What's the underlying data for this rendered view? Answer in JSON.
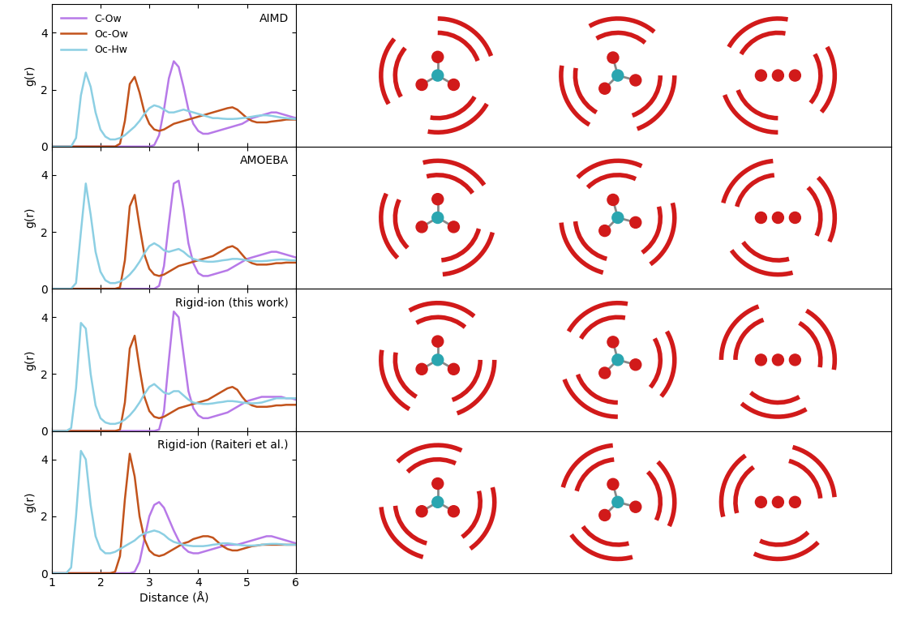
{
  "chart_data": [
    {
      "type": "line",
      "annotation": "AIMD",
      "y_label": "g(r)",
      "legend": "upper left",
      "tick_labels": "y",
      "xlim": [
        1,
        6
      ],
      "ylim": [
        0,
        5
      ],
      "xticks": [
        1,
        2,
        3,
        4,
        5,
        6
      ],
      "yticks": [
        0,
        2,
        4
      ],
      "x": [
        1.0,
        1.1,
        1.2,
        1.3,
        1.4,
        1.5,
        1.6,
        1.7,
        1.8,
        1.9,
        2.0,
        2.1,
        2.2,
        2.3,
        2.4,
        2.5,
        2.6,
        2.7,
        2.8,
        2.9,
        3.0,
        3.1,
        3.2,
        3.3,
        3.4,
        3.5,
        3.6,
        3.7,
        3.8,
        3.9,
        4.0,
        4.1,
        4.2,
        4.3,
        4.4,
        4.5,
        4.6,
        4.7,
        4.8,
        4.9,
        5.0,
        5.1,
        5.2,
        5.3,
        5.4,
        5.5,
        5.6,
        5.7,
        5.8,
        5.9,
        6.0
      ],
      "series": [
        {
          "name": "C-Ow",
          "color": "#b779e8",
          "values": [
            0,
            0,
            0,
            0,
            0,
            0,
            0,
            0,
            0,
            0,
            0,
            0,
            0,
            0,
            0,
            0,
            0,
            0,
            0,
            0,
            0,
            0.05,
            0.4,
            1.3,
            2.4,
            3.0,
            2.8,
            2.1,
            1.3,
            0.8,
            0.55,
            0.45,
            0.45,
            0.5,
            0.55,
            0.6,
            0.65,
            0.7,
            0.75,
            0.8,
            0.9,
            1.0,
            1.05,
            1.1,
            1.15,
            1.2,
            1.2,
            1.15,
            1.1,
            1.05,
            1.0
          ]
        },
        {
          "name": "Oc-Ow",
          "color": "#c2531c",
          "values": [
            0,
            0,
            0,
            0,
            0,
            0,
            0,
            0,
            0,
            0,
            0,
            0,
            0,
            0,
            0.1,
            0.9,
            2.2,
            2.45,
            1.9,
            1.2,
            0.8,
            0.6,
            0.55,
            0.6,
            0.7,
            0.8,
            0.85,
            0.9,
            0.95,
            1.0,
            1.05,
            1.1,
            1.15,
            1.2,
            1.25,
            1.3,
            1.35,
            1.38,
            1.3,
            1.15,
            1.0,
            0.9,
            0.85,
            0.85,
            0.85,
            0.88,
            0.9,
            0.92,
            0.95,
            0.95,
            0.95
          ]
        },
        {
          "name": "Oc-Hw",
          "color": "#8ccfe3",
          "values": [
            0,
            0,
            0,
            0,
            0,
            0.3,
            1.8,
            2.6,
            2.1,
            1.2,
            0.6,
            0.35,
            0.25,
            0.25,
            0.3,
            0.4,
            0.55,
            0.7,
            0.9,
            1.15,
            1.35,
            1.45,
            1.4,
            1.3,
            1.2,
            1.2,
            1.25,
            1.3,
            1.25,
            1.2,
            1.15,
            1.1,
            1.05,
            1.0,
            1.0,
            0.98,
            0.97,
            0.97,
            0.98,
            1.0,
            1.02,
            1.05,
            1.08,
            1.1,
            1.1,
            1.08,
            1.05,
            1.02,
            1.0,
            0.98,
            0.97
          ]
        }
      ]
    },
    {
      "type": "line",
      "annotation": "AMOEBA",
      "y_label": "g(r)",
      "tick_labels": "y",
      "xlim": [
        1,
        6
      ],
      "ylim": [
        0,
        5
      ],
      "xticks": [
        1,
        2,
        3,
        4,
        5,
        6
      ],
      "yticks": [
        0,
        2,
        4
      ],
      "x": [
        1.0,
        1.1,
        1.2,
        1.3,
        1.4,
        1.5,
        1.6,
        1.7,
        1.8,
        1.9,
        2.0,
        2.1,
        2.2,
        2.3,
        2.4,
        2.5,
        2.6,
        2.7,
        2.8,
        2.9,
        3.0,
        3.1,
        3.2,
        3.3,
        3.4,
        3.5,
        3.6,
        3.7,
        3.8,
        3.9,
        4.0,
        4.1,
        4.2,
        4.3,
        4.4,
        4.5,
        4.6,
        4.7,
        4.8,
        4.9,
        5.0,
        5.1,
        5.2,
        5.3,
        5.4,
        5.5,
        5.6,
        5.7,
        5.8,
        5.9,
        6.0
      ],
      "series": [
        {
          "color": "#b779e8",
          "values": [
            0,
            0,
            0,
            0,
            0,
            0,
            0,
            0,
            0,
            0,
            0,
            0,
            0,
            0,
            0,
            0,
            0,
            0,
            0,
            0,
            0,
            0,
            0.1,
            0.8,
            2.3,
            3.7,
            3.8,
            2.8,
            1.6,
            0.9,
            0.55,
            0.45,
            0.45,
            0.5,
            0.55,
            0.6,
            0.65,
            0.75,
            0.85,
            0.95,
            1.05,
            1.1,
            1.15,
            1.2,
            1.25,
            1.3,
            1.3,
            1.25,
            1.2,
            1.15,
            1.1
          ]
        },
        {
          "color": "#c2531c",
          "values": [
            0,
            0,
            0,
            0,
            0,
            0,
            0,
            0,
            0,
            0,
            0,
            0,
            0,
            0,
            0.05,
            1.0,
            2.9,
            3.3,
            2.2,
            1.2,
            0.7,
            0.5,
            0.45,
            0.5,
            0.6,
            0.7,
            0.8,
            0.85,
            0.9,
            0.95,
            1.0,
            1.05,
            1.1,
            1.15,
            1.25,
            1.35,
            1.45,
            1.5,
            1.4,
            1.2,
            1.0,
            0.9,
            0.85,
            0.85,
            0.85,
            0.87,
            0.9,
            0.9,
            0.92,
            0.92,
            0.92
          ]
        },
        {
          "color": "#8ccfe3",
          "values": [
            0,
            0,
            0,
            0,
            0,
            0.2,
            2.0,
            3.7,
            2.6,
            1.3,
            0.6,
            0.3,
            0.2,
            0.2,
            0.25,
            0.35,
            0.5,
            0.7,
            0.95,
            1.25,
            1.5,
            1.6,
            1.5,
            1.35,
            1.3,
            1.35,
            1.4,
            1.3,
            1.15,
            1.05,
            1.0,
            0.97,
            0.95,
            0.95,
            0.97,
            1.0,
            1.02,
            1.05,
            1.05,
            1.03,
            1.0,
            0.98,
            0.97,
            0.97,
            0.98,
            1.0,
            1.02,
            1.03,
            1.02,
            1.0,
            1.0
          ]
        }
      ]
    },
    {
      "type": "line",
      "annotation": "Rigid-ion (this work)",
      "y_label": "g(r)",
      "tick_labels": "y",
      "xlim": [
        1,
        6
      ],
      "ylim": [
        0,
        5
      ],
      "xticks": [
        1,
        2,
        3,
        4,
        5,
        6
      ],
      "yticks": [
        0,
        2,
        4
      ],
      "x": [
        1.0,
        1.1,
        1.2,
        1.3,
        1.4,
        1.5,
        1.6,
        1.7,
        1.8,
        1.9,
        2.0,
        2.1,
        2.2,
        2.3,
        2.4,
        2.5,
        2.6,
        2.7,
        2.8,
        2.9,
        3.0,
        3.1,
        3.2,
        3.3,
        3.4,
        3.5,
        3.6,
        3.7,
        3.8,
        3.9,
        4.0,
        4.1,
        4.2,
        4.3,
        4.4,
        4.5,
        4.6,
        4.7,
        4.8,
        4.9,
        5.0,
        5.1,
        5.2,
        5.3,
        5.4,
        5.5,
        5.6,
        5.7,
        5.8,
        5.9,
        6.0
      ],
      "series": [
        {
          "color": "#b779e8",
          "values": [
            0,
            0,
            0,
            0,
            0,
            0,
            0,
            0,
            0,
            0,
            0,
            0,
            0,
            0,
            0,
            0,
            0,
            0,
            0,
            0,
            0,
            0,
            0.05,
            0.7,
            2.5,
            4.2,
            4.0,
            2.7,
            1.4,
            0.8,
            0.55,
            0.45,
            0.45,
            0.5,
            0.55,
            0.6,
            0.65,
            0.75,
            0.85,
            0.95,
            1.05,
            1.1,
            1.15,
            1.2,
            1.2,
            1.2,
            1.2,
            1.2,
            1.15,
            1.15,
            1.1
          ]
        },
        {
          "color": "#c2531c",
          "values": [
            0,
            0,
            0,
            0,
            0,
            0,
            0,
            0,
            0,
            0,
            0,
            0,
            0,
            0,
            0.05,
            1.0,
            2.9,
            3.35,
            2.2,
            1.2,
            0.7,
            0.5,
            0.45,
            0.5,
            0.6,
            0.7,
            0.8,
            0.85,
            0.9,
            0.95,
            1.0,
            1.05,
            1.1,
            1.2,
            1.3,
            1.4,
            1.5,
            1.55,
            1.45,
            1.2,
            1.0,
            0.9,
            0.85,
            0.85,
            0.85,
            0.87,
            0.9,
            0.9,
            0.92,
            0.92,
            0.92
          ]
        },
        {
          "color": "#8ccfe3",
          "values": [
            0,
            0,
            0,
            0,
            0.1,
            1.5,
            3.8,
            3.6,
            2.0,
            0.9,
            0.45,
            0.3,
            0.25,
            0.25,
            0.3,
            0.4,
            0.55,
            0.75,
            1.0,
            1.3,
            1.55,
            1.65,
            1.5,
            1.35,
            1.3,
            1.4,
            1.4,
            1.25,
            1.1,
            1.0,
            0.97,
            0.95,
            0.95,
            0.97,
            1.0,
            1.02,
            1.05,
            1.05,
            1.03,
            1.0,
            0.98,
            0.97,
            0.98,
            1.0,
            1.05,
            1.1,
            1.15,
            1.15,
            1.15,
            1.15,
            1.15
          ]
        }
      ]
    },
    {
      "type": "line",
      "annotation": "Rigid-ion (Raiteri et al.)",
      "x_label": "Distance (Å)",
      "y_label": "g(r)",
      "xlim": [
        1,
        6
      ],
      "ylim": [
        0,
        5
      ],
      "xticks": [
        1,
        2,
        3,
        4,
        5,
        6
      ],
      "yticks": [
        0,
        2,
        4
      ],
      "x": [
        1.0,
        1.1,
        1.2,
        1.3,
        1.4,
        1.5,
        1.6,
        1.7,
        1.8,
        1.9,
        2.0,
        2.1,
        2.2,
        2.3,
        2.4,
        2.5,
        2.6,
        2.7,
        2.8,
        2.9,
        3.0,
        3.1,
        3.2,
        3.3,
        3.4,
        3.5,
        3.6,
        3.7,
        3.8,
        3.9,
        4.0,
        4.1,
        4.2,
        4.3,
        4.4,
        4.5,
        4.6,
        4.7,
        4.8,
        4.9,
        5.0,
        5.1,
        5.2,
        5.3,
        5.4,
        5.5,
        5.6,
        5.7,
        5.8,
        5.9,
        6.0
      ],
      "series": [
        {
          "color": "#b779e8",
          "values": [
            0,
            0,
            0,
            0,
            0,
            0,
            0,
            0,
            0,
            0,
            0,
            0,
            0,
            0,
            0,
            0,
            0,
            0.05,
            0.4,
            1.2,
            2.0,
            2.4,
            2.5,
            2.3,
            1.9,
            1.5,
            1.15,
            0.9,
            0.75,
            0.7,
            0.7,
            0.75,
            0.8,
            0.85,
            0.9,
            0.95,
            1.0,
            1.0,
            1.0,
            1.05,
            1.1,
            1.15,
            1.2,
            1.25,
            1.3,
            1.3,
            1.25,
            1.2,
            1.15,
            1.1,
            1.05
          ]
        },
        {
          "color": "#c2531c",
          "values": [
            0,
            0,
            0,
            0,
            0,
            0,
            0,
            0,
            0,
            0,
            0,
            0,
            0,
            0.05,
            0.6,
            2.6,
            4.2,
            3.4,
            2.0,
            1.2,
            0.8,
            0.65,
            0.6,
            0.65,
            0.75,
            0.85,
            0.95,
            1.05,
            1.1,
            1.2,
            1.25,
            1.3,
            1.3,
            1.25,
            1.1,
            0.95,
            0.85,
            0.8,
            0.8,
            0.85,
            0.9,
            0.95,
            0.97,
            1.0,
            1.0,
            1.0,
            1.0,
            1.0,
            1.0,
            1.0,
            1.0
          ]
        },
        {
          "color": "#8ccfe3",
          "values": [
            0,
            0,
            0,
            0,
            0.2,
            2.0,
            4.3,
            4.0,
            2.4,
            1.3,
            0.85,
            0.7,
            0.7,
            0.75,
            0.85,
            0.95,
            1.05,
            1.15,
            1.3,
            1.4,
            1.45,
            1.5,
            1.45,
            1.35,
            1.2,
            1.1,
            1.05,
            1.0,
            0.97,
            0.95,
            0.95,
            0.95,
            0.97,
            1.0,
            1.02,
            1.05,
            1.05,
            1.03,
            1.0,
            0.98,
            0.97,
            0.97,
            0.98,
            1.0,
            1.02,
            1.03,
            1.03,
            1.02,
            1.0,
            1.0,
            1.0
          ]
        }
      ]
    }
  ]
}
